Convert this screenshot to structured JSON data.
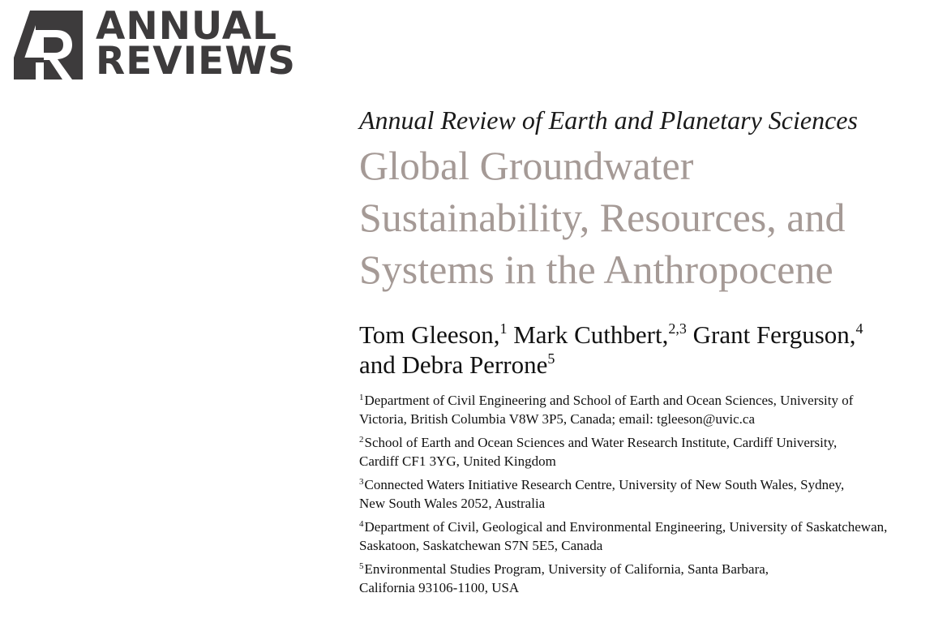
{
  "logo": {
    "line1": "ANNUAL",
    "line2": "REVIEWS",
    "mark_color": "#3d3b3c"
  },
  "journal": "Annual Review of Earth and Planetary Sciences",
  "title_lines": [
    "Global Groundwater",
    "Sustainability, Resources, and",
    "Systems in the Anthropocene"
  ],
  "title_color": "#a59a96",
  "authors": [
    {
      "name": "Tom Gleeson,",
      "sup": "1"
    },
    {
      "name": "Mark Cuthbert,",
      "sup": "2,3"
    },
    {
      "name": "Grant Ferguson,",
      "sup": "4"
    },
    {
      "name": "and Debra Perrone",
      "sup": "5"
    }
  ],
  "affiliations": [
    {
      "sup": "1",
      "lines": [
        "Department of Civil Engineering and School of Earth and Ocean Sciences, University of",
        "Victoria, British Columbia V8W 3P5, Canada; email: tgleeson@uvic.ca"
      ]
    },
    {
      "sup": "2",
      "lines": [
        "School of Earth and Ocean Sciences and Water Research Institute, Cardiff University,",
        "Cardiff CF1 3YG, United Kingdom"
      ]
    },
    {
      "sup": "3",
      "lines": [
        "Connected Waters Initiative Research Centre, University of New South Wales, Sydney,",
        "New South Wales 2052, Australia"
      ]
    },
    {
      "sup": "4",
      "lines": [
        "Department of Civil, Geological and Environmental Engineering, University of Saskatchewan,",
        "Saskatoon, Saskatchewan S7N 5E5, Canada"
      ]
    },
    {
      "sup": "5",
      "lines": [
        "Environmental Studies Program, University of California, Santa Barbara,",
        "California 93106-1100, USA"
      ]
    }
  ]
}
